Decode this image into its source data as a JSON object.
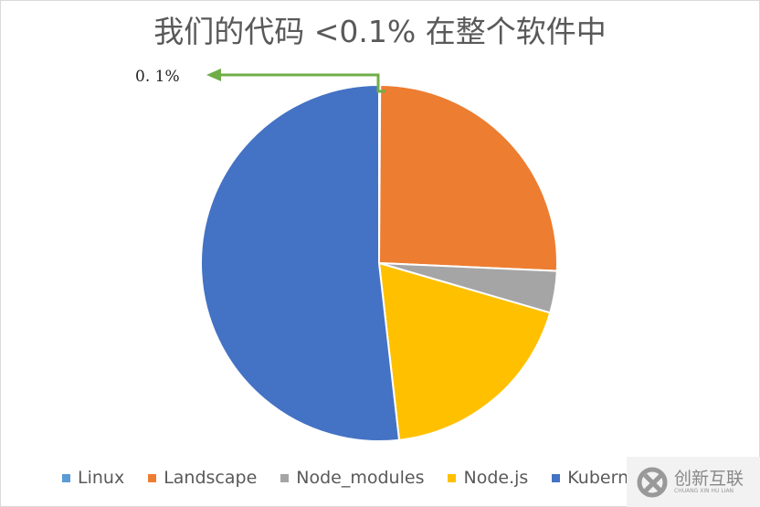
{
  "chart_data": {
    "type": "pie",
    "title": "我们的代码 <0.1% 在整个软件中",
    "categories": [
      "Linux",
      "Landscape",
      "Node_modules",
      "Node.js",
      "Kubernetes"
    ],
    "values": [
      0.1,
      25.6,
      3.8,
      18.7,
      51.8
    ],
    "colors": [
      "#5B9BD5",
      "#ED7D31",
      "#A5A5A5",
      "#FFC000",
      "#4472C4"
    ],
    "annotation": "0. 1%",
    "annotation_arrow_color": "#70AD47",
    "legend_position": "bottom"
  },
  "watermark": {
    "text": "创新互联",
    "sub": "CHUANG XIN HU LIAN"
  }
}
